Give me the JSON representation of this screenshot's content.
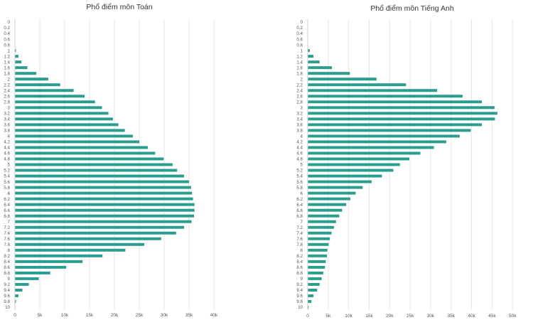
{
  "colors": {
    "bar": "#2a9d8f",
    "grid": "#e6e6e6",
    "text": "#555555",
    "title": "#333333"
  },
  "chart_data": [
    {
      "type": "bar",
      "orientation": "horizontal",
      "title": "Phổ điểm môn Toán",
      "categories": [
        "0",
        "0.2",
        "0.4",
        "0.6",
        "0.8",
        "1",
        "1.2",
        "1.4",
        "1.6",
        "1.8",
        "2",
        "2.2",
        "2.4",
        "2.6",
        "2.8",
        "3",
        "3.2",
        "3.4",
        "3.6",
        "3.8",
        "4",
        "4.2",
        "4.4",
        "4.6",
        "4.8",
        "5",
        "5.2",
        "5.4",
        "5.6",
        "5.8",
        "6",
        "6.2",
        "6.4",
        "6.6",
        "6.8",
        "7",
        "7.2",
        "7.4",
        "7.6",
        "7.8",
        "8",
        "8.2",
        "8.4",
        "8.6",
        "8.8",
        "9",
        "9.2",
        "9.4",
        "9.6",
        "9.8",
        "10"
      ],
      "values": [
        0,
        0,
        0,
        0,
        0,
        200,
        700,
        1300,
        2500,
        4300,
        6700,
        9100,
        11800,
        14000,
        16100,
        17500,
        18800,
        19700,
        20800,
        22100,
        23700,
        25000,
        26700,
        28200,
        29900,
        31700,
        32600,
        34000,
        35000,
        35400,
        35600,
        35800,
        36100,
        36100,
        36000,
        35500,
        34000,
        32400,
        29400,
        26000,
        22200,
        17600,
        13600,
        10300,
        7100,
        4800,
        2800,
        1500,
        700,
        200,
        0
      ],
      "xlim": [
        0,
        42000
      ],
      "xticks": [
        0,
        5000,
        10000,
        15000,
        20000,
        25000,
        30000,
        35000,
        40000
      ],
      "xtick_labels": [
        "0",
        "5k",
        "10k",
        "15k",
        "20k",
        "25k",
        "30k",
        "35k",
        "40k"
      ],
      "xlabel": "",
      "ylabel": "",
      "grid": "vertical"
    },
    {
      "type": "bar",
      "orientation": "horizontal",
      "title": "Phổ điểm môn Tiếng Anh",
      "categories": [
        "0",
        "0.2",
        "0.4",
        "0.6",
        "0.8",
        "1",
        "1.2",
        "1.4",
        "1.6",
        "1.8",
        "2",
        "2.2",
        "2.4",
        "2.6",
        "2.8",
        "3",
        "3.2",
        "3.4",
        "3.6",
        "3.8",
        "4",
        "4.2",
        "4.4",
        "4.6",
        "4.8",
        "5",
        "5.2",
        "5.4",
        "5.6",
        "5.8",
        "6",
        "6.2",
        "6.4",
        "6.6",
        "6.8",
        "7",
        "7.2",
        "7.4",
        "7.6",
        "7.8",
        "8",
        "8.2",
        "8.4",
        "8.6",
        "8.8",
        "9",
        "9.2",
        "9.4",
        "9.6",
        "9.8",
        "10"
      ],
      "values": [
        0,
        0,
        0,
        0,
        0,
        500,
        1400,
        2900,
        5900,
        10300,
        16800,
        24000,
        31600,
        37800,
        42500,
        45600,
        46300,
        45700,
        42500,
        39800,
        37100,
        33800,
        30800,
        27500,
        24800,
        22500,
        20900,
        18100,
        15600,
        13400,
        11700,
        10400,
        9400,
        8400,
        7700,
        6900,
        6400,
        5800,
        5400,
        5100,
        4800,
        4700,
        4400,
        4200,
        3800,
        3400,
        2900,
        2300,
        1400,
        900,
        200
      ],
      "xlim": [
        0,
        51000
      ],
      "xticks": [
        0,
        5000,
        10000,
        15000,
        20000,
        25000,
        30000,
        35000,
        40000,
        45000,
        50000
      ],
      "xtick_labels": [
        "0",
        "5k",
        "10k",
        "15k",
        "20k",
        "25k",
        "30k",
        "35k",
        "40k",
        "45k",
        "50k"
      ],
      "xlabel": "",
      "ylabel": "",
      "grid": "vertical"
    }
  ]
}
